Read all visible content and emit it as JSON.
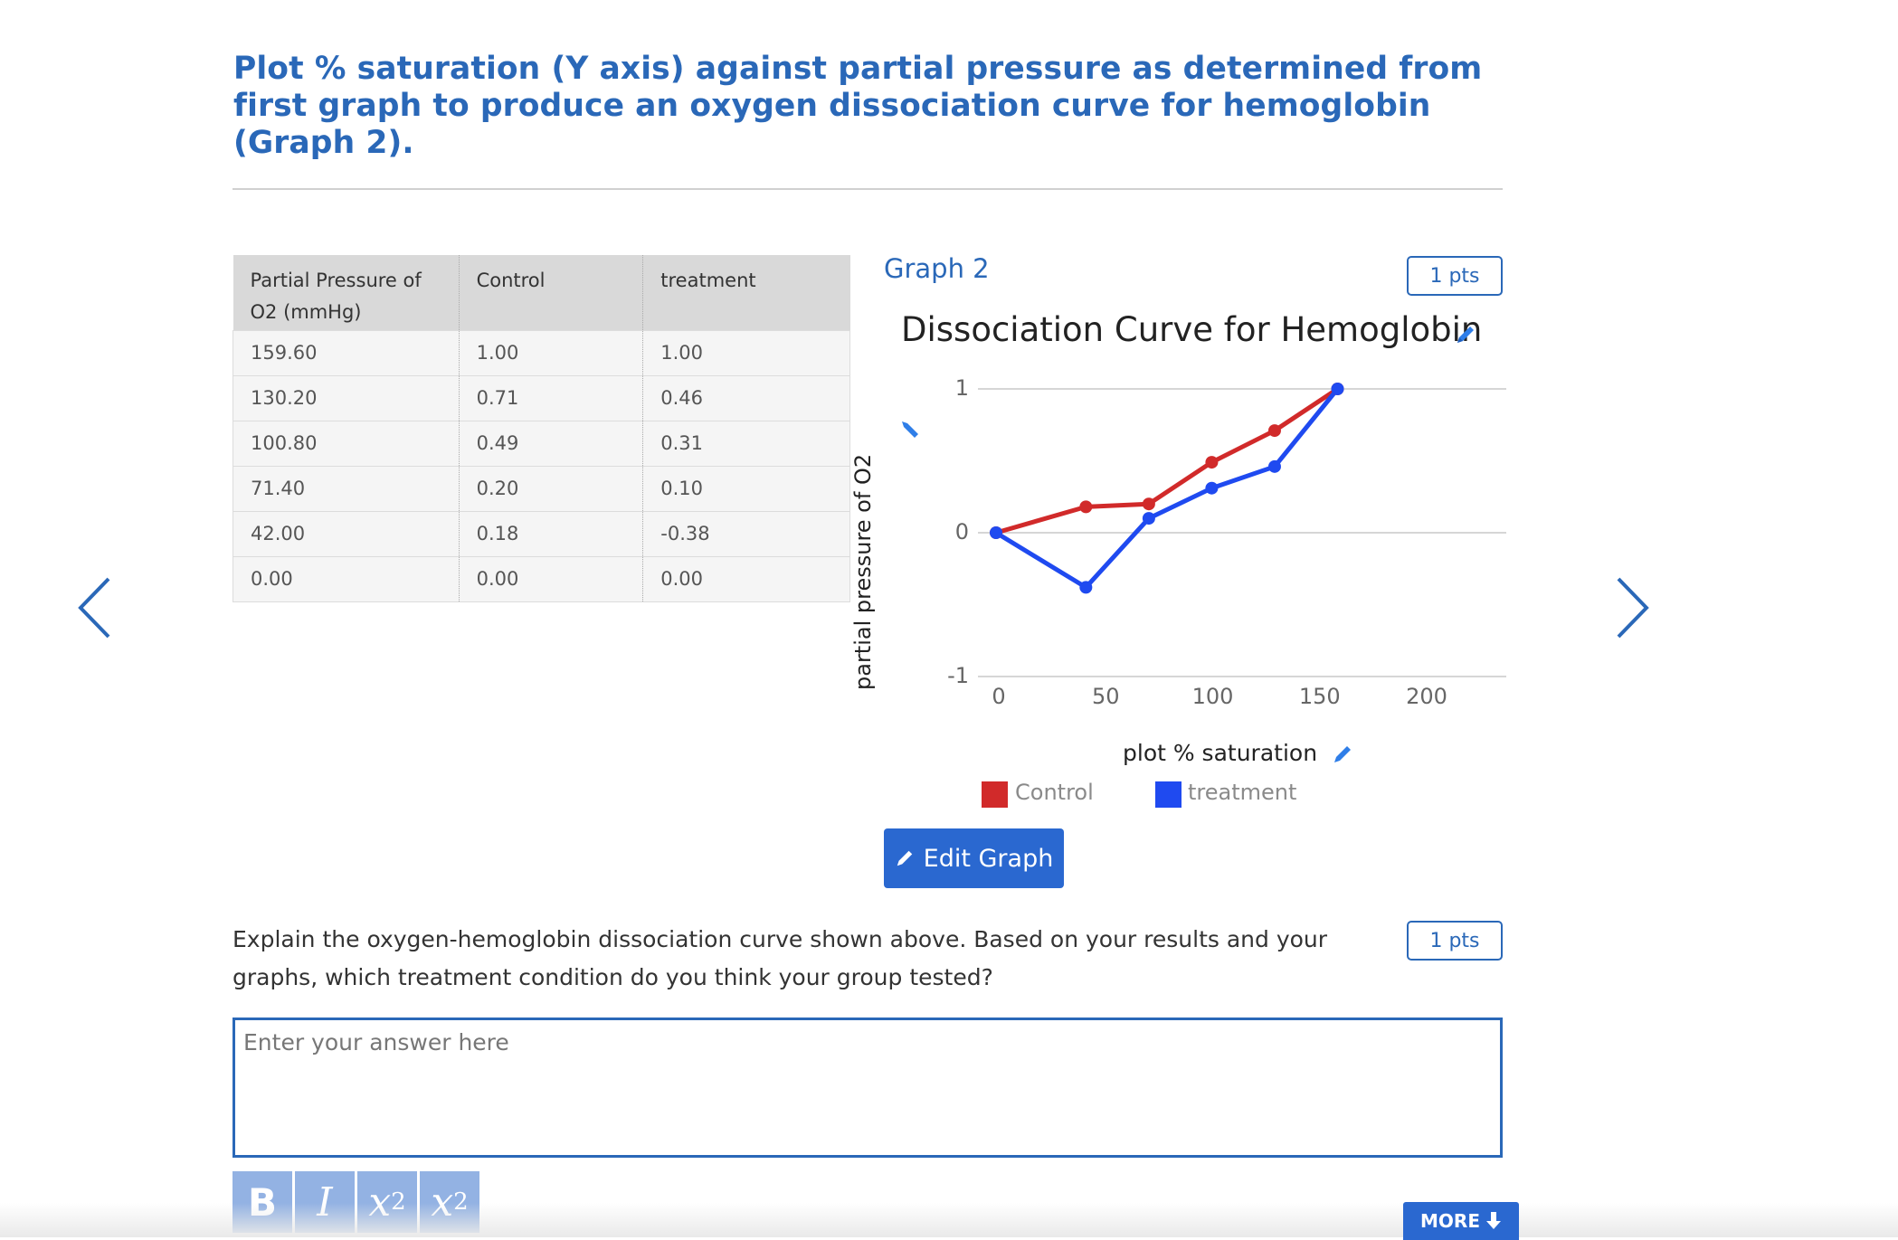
{
  "question": {
    "title": "Plot % saturation (Y axis) against partial pressure as determined from first graph to produce an oxygen dissociation curve for hemoglobin (Graph 2)."
  },
  "table": {
    "headers": [
      "Partial Pressure of O2 (mmHg)",
      "Control",
      "treatment"
    ],
    "header0_text": "Partial Pressure of ",
    "header0_sub": "O2",
    "header0_unit": " (mmHg)",
    "rows": [
      [
        "159.60",
        "1.00",
        "1.00"
      ],
      [
        "130.20",
        "0.71",
        "0.46"
      ],
      [
        "100.80",
        "0.49",
        "0.31"
      ],
      [
        "71.40",
        "0.20",
        "0.10"
      ],
      [
        "42.00",
        "0.18",
        "-0.38"
      ],
      [
        "0.00",
        "0.00",
        "0.00"
      ]
    ]
  },
  "graph": {
    "label": "Graph 2",
    "points": "1 pts",
    "edit_label": "Edit Graph"
  },
  "chart_data": {
    "type": "line",
    "title": "Dissociation Curve for Hemoglobin",
    "xlabel": "plot % saturation",
    "ylabel": "partial pressure of O2",
    "xlim": [
      0,
      230
    ],
    "ylim": [
      -1,
      1
    ],
    "xticks": [
      "0",
      "50",
      "100",
      "150",
      "200"
    ],
    "yticks": [
      "1",
      "0",
      "-1"
    ],
    "grid": true,
    "legend": "bottom",
    "series": [
      {
        "name": "Control",
        "color": "#d12a2a",
        "x": [
          0,
          42,
          71.4,
          100.8,
          130.2,
          159.6
        ],
        "y": [
          0,
          0.18,
          0.2,
          0.49,
          0.71,
          1.0
        ]
      },
      {
        "name": "treatment",
        "color": "#1f4af0",
        "x": [
          0,
          42,
          71.4,
          100.8,
          130.2,
          159.6
        ],
        "y": [
          0,
          -0.38,
          0.1,
          0.31,
          0.46,
          1.0
        ]
      }
    ]
  },
  "question2": {
    "text": "Explain the oxygen-hemoglobin dissociation curve shown above. Based on your results and your graphs, which treatment condition do you think your group tested?",
    "points": "1 pts",
    "placeholder": "Enter your answer here"
  },
  "toolbar": {
    "bold": "B",
    "italic": "I",
    "sub_base": "x",
    "sub": "2",
    "sup_base": "x",
    "sup": "2"
  },
  "more_label": "MORE",
  "colors": {
    "accent": "#2a68b8",
    "button": "#2a68d0"
  }
}
